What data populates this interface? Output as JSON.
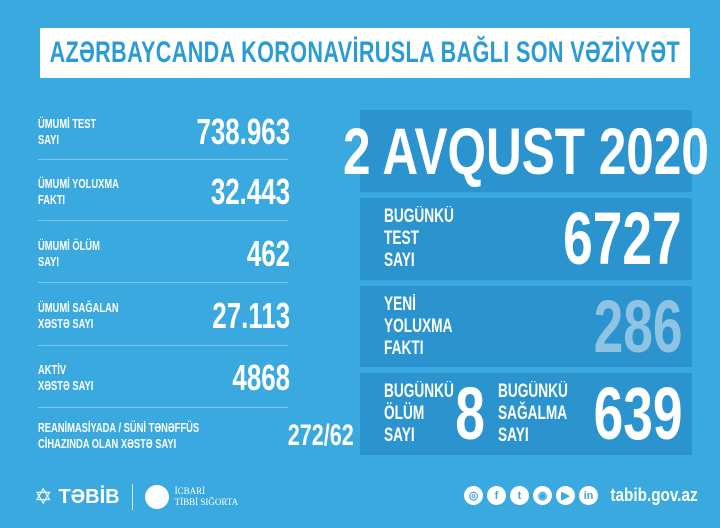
{
  "title": "AZƏRBAYCANDA KORONAVİRUSLA BAĞLI SON VƏZİYYƏT",
  "totals": [
    {
      "label1": "ÜMUMİ TEST",
      "label2": "SAYI",
      "value": "738.963"
    },
    {
      "label1": "ÜMUMİ YOLUXMA",
      "label2": "FAKTI",
      "value": "32.443"
    },
    {
      "label1": "ÜMUMİ ÖLÜM",
      "label2": "SAYI",
      "value": "462"
    },
    {
      "label1": "ÜMUMİ SAĞALAN",
      "label2": "XƏSTƏ SAYI",
      "value": "27.113"
    },
    {
      "label1": "AKTİV",
      "label2": "XƏSTƏ SAYI",
      "value": "4868"
    },
    {
      "label1": "REANİMASİYADA / SÜNİ TƏNƏFFÜS",
      "label2": "CİHAZINDA OLAN XƏSTƏ SAYI",
      "value": "272/62"
    }
  ],
  "date": "2 AVQUST 2020",
  "today": {
    "test": {
      "l1": "BUGÜNKÜ",
      "l2": "TEST",
      "l3": "SAYI",
      "value": "6727"
    },
    "new_cases": {
      "l1": "YENİ",
      "l2": "YOLUXMA",
      "l3": "FAKTI",
      "value": "286",
      "color": "#8fc3e3"
    },
    "deaths": {
      "l1": "BUGÜNKÜ",
      "l2": "ÖLÜM",
      "l3": "SAYI",
      "value": "8"
    },
    "recovered": {
      "l1": "BUGÜNKÜ",
      "l2": "SAĞALMA",
      "l3": "SAYI",
      "value": "639"
    }
  },
  "footer": {
    "logo1": "TƏBİB",
    "logo2a": "İCBARİ",
    "logo2b": "TİBBİ SIĞORTA",
    "icons": [
      "web-icon",
      "facebook-icon",
      "twitter-icon",
      "instagram-icon",
      "youtube-icon",
      "linkedin-icon"
    ],
    "url": "tabib.gov.az"
  },
  "colors": {
    "background": "#39a9df",
    "panel": "#2b94cf",
    "banner_text": "#2b9bd6"
  }
}
